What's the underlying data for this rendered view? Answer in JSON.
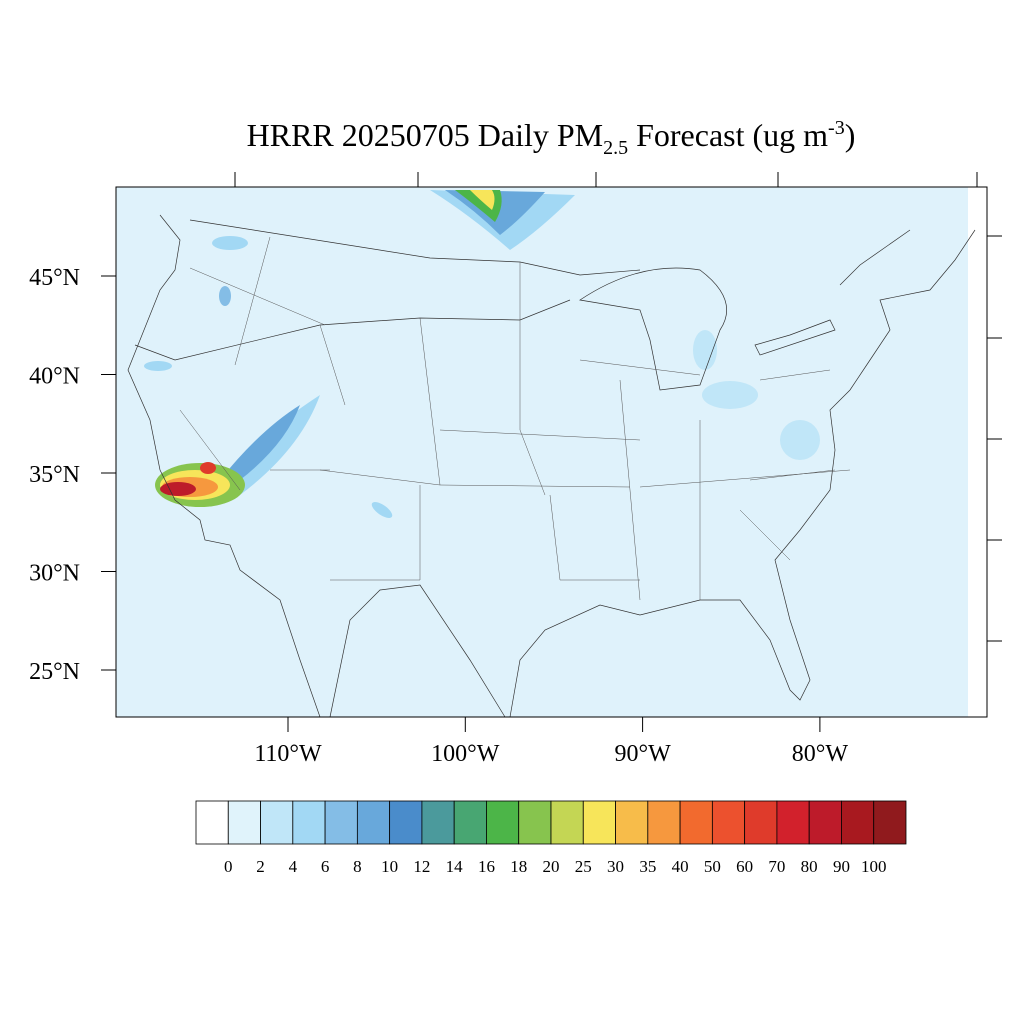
{
  "title": {
    "main": "HRRR 20250705 Daily PM",
    "sub": "2.5",
    "mid": " Forecast (ug m",
    "sup": "-3",
    "end": ")"
  },
  "map": {
    "lat_labels": [
      {
        "value": 45,
        "label": "45°N"
      },
      {
        "value": 40,
        "label": "40°N"
      },
      {
        "value": 35,
        "label": "35°N"
      },
      {
        "value": 30,
        "label": "30°N"
      },
      {
        "value": 25,
        "label": "25°N"
      }
    ],
    "lon_labels": [
      {
        "value": -110,
        "label": "110°W"
      },
      {
        "value": -100,
        "label": "100°W"
      },
      {
        "value": -90,
        "label": "90°W"
      },
      {
        "value": -80,
        "label": "80°W"
      }
    ]
  },
  "colorbar": {
    "levels": [
      0,
      2,
      4,
      6,
      8,
      10,
      12,
      14,
      16,
      18,
      20,
      25,
      30,
      35,
      40,
      50,
      60,
      70,
      80,
      90,
      100
    ],
    "colors": [
      "#ffffff",
      "#e0f3fb",
      "#c0e6f8",
      "#a2d8f4",
      "#84bde6",
      "#68a8db",
      "#4a8ccb",
      "#4b9a9c",
      "#48a672",
      "#4cb548",
      "#87c44e",
      "#c4d654",
      "#f7e55a",
      "#f7bc4a",
      "#f6983e",
      "#f26a2e",
      "#ec512e",
      "#df3b2b",
      "#d2212c",
      "#bd1b2a",
      "#a8191f",
      "#901a1d"
    ]
  }
}
